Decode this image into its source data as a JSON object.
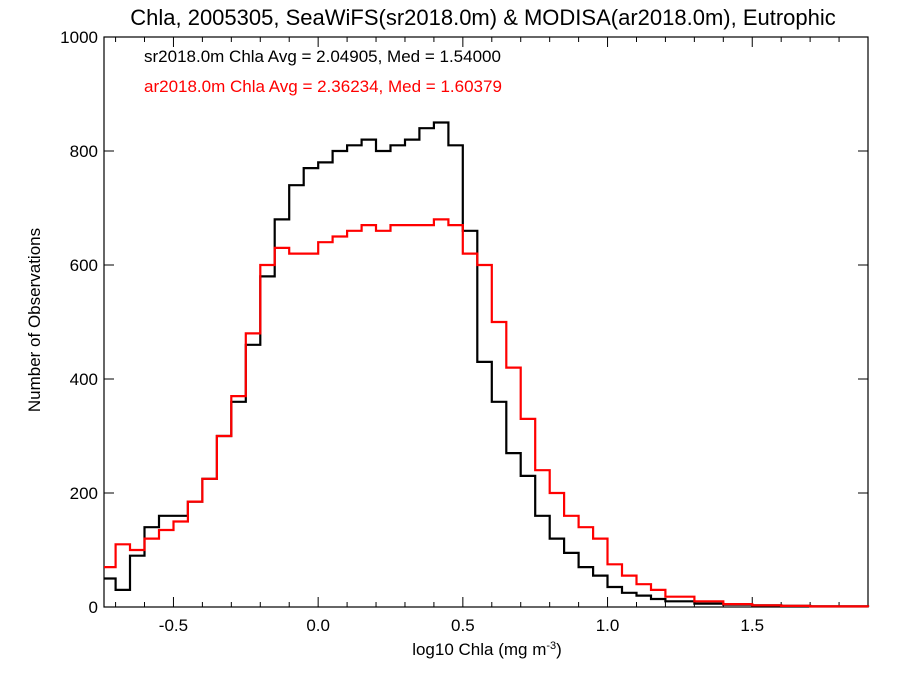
{
  "chart_data": {
    "type": "line",
    "step": true,
    "title": "Chla, 2005305, SeaWiFS(sr2018.0m) & MODISA(ar2018.0m), Eutrophic",
    "xlabel": "log10 Chla (mg m",
    "xlabel_sup": "-3",
    "xlabel_suffix": ")",
    "ylabel": "Number of Observations",
    "xlim": [
      -0.74,
      1.9
    ],
    "ylim": [
      0,
      1000
    ],
    "xticks": [
      -0.5,
      0.0,
      0.5,
      1.0,
      1.5
    ],
    "xtick_labels": [
      "-0.5",
      "0.0",
      "0.5",
      "1.0",
      "1.5"
    ],
    "yticks": [
      0,
      200,
      400,
      600,
      800,
      1000
    ],
    "ytick_labels": [
      "0",
      "200",
      "400",
      "600",
      "800",
      "1000"
    ],
    "grid": false,
    "annotations": [
      {
        "text": "sr2018.0m Chla Avg = 2.04905, Med = 1.54000",
        "color": "#000000"
      },
      {
        "text": "ar2018.0m Chla Avg = 2.36234, Med = 1.60379",
        "color": "#ff0000"
      }
    ],
    "series": [
      {
        "name": "sr2018.0m",
        "color": "#000000",
        "x": [
          -0.74,
          -0.7,
          -0.65,
          -0.6,
          -0.55,
          -0.5,
          -0.45,
          -0.4,
          -0.35,
          -0.3,
          -0.25,
          -0.2,
          -0.15,
          -0.1,
          -0.05,
          0.0,
          0.05,
          0.1,
          0.15,
          0.2,
          0.25,
          0.3,
          0.35,
          0.4,
          0.45,
          0.5,
          0.55,
          0.6,
          0.65,
          0.7,
          0.75,
          0.8,
          0.85,
          0.9,
          0.95,
          1.0,
          1.05,
          1.1,
          1.15,
          1.2,
          1.3,
          1.4,
          1.5,
          1.6,
          1.7,
          1.8,
          1.9
        ],
        "y": [
          50,
          30,
          90,
          140,
          160,
          160,
          185,
          225,
          300,
          360,
          460,
          580,
          680,
          740,
          770,
          780,
          800,
          810,
          820,
          800,
          810,
          820,
          840,
          850,
          810,
          660,
          430,
          360,
          270,
          230,
          160,
          120,
          95,
          70,
          55,
          35,
          25,
          20,
          14,
          10,
          6,
          4,
          3,
          2,
          1,
          1,
          0
        ]
      },
      {
        "name": "ar2018.0m",
        "color": "#ff0000",
        "x": [
          -0.74,
          -0.7,
          -0.65,
          -0.6,
          -0.55,
          -0.5,
          -0.45,
          -0.4,
          -0.35,
          -0.3,
          -0.25,
          -0.2,
          -0.15,
          -0.1,
          -0.05,
          0.0,
          0.05,
          0.1,
          0.15,
          0.2,
          0.25,
          0.3,
          0.35,
          0.4,
          0.45,
          0.5,
          0.55,
          0.6,
          0.65,
          0.7,
          0.75,
          0.8,
          0.85,
          0.9,
          0.95,
          1.0,
          1.05,
          1.1,
          1.15,
          1.2,
          1.3,
          1.4,
          1.5,
          1.6,
          1.7,
          1.8,
          1.9
        ],
        "y": [
          70,
          110,
          100,
          120,
          135,
          150,
          185,
          225,
          300,
          370,
          480,
          600,
          630,
          620,
          620,
          640,
          650,
          660,
          670,
          660,
          670,
          670,
          670,
          680,
          670,
          620,
          600,
          500,
          420,
          330,
          240,
          200,
          160,
          140,
          120,
          75,
          55,
          40,
          30,
          18,
          10,
          5,
          3,
          2,
          1,
          1,
          0
        ]
      }
    ]
  }
}
